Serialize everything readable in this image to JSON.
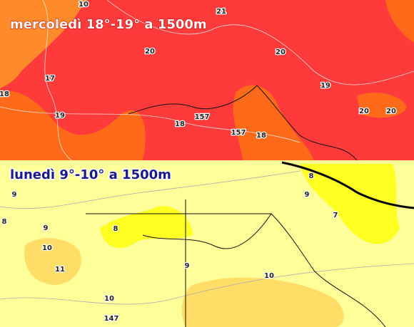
{
  "panels": [
    {
      "title": "mercoledì 18°-19° a 1500m",
      "labels": [
        "10",
        "21",
        "20",
        "20",
        "17",
        "18",
        "19",
        "19",
        "20",
        "20",
        "18",
        "157",
        "157",
        "18"
      ]
    },
    {
      "title": "lunedì 9°-10° a 1500m",
      "labels": [
        "9",
        "8",
        "9",
        "8",
        "10",
        "11",
        "9",
        "10",
        "10",
        "147",
        "8",
        "9",
        "7"
      ]
    }
  ]
}
